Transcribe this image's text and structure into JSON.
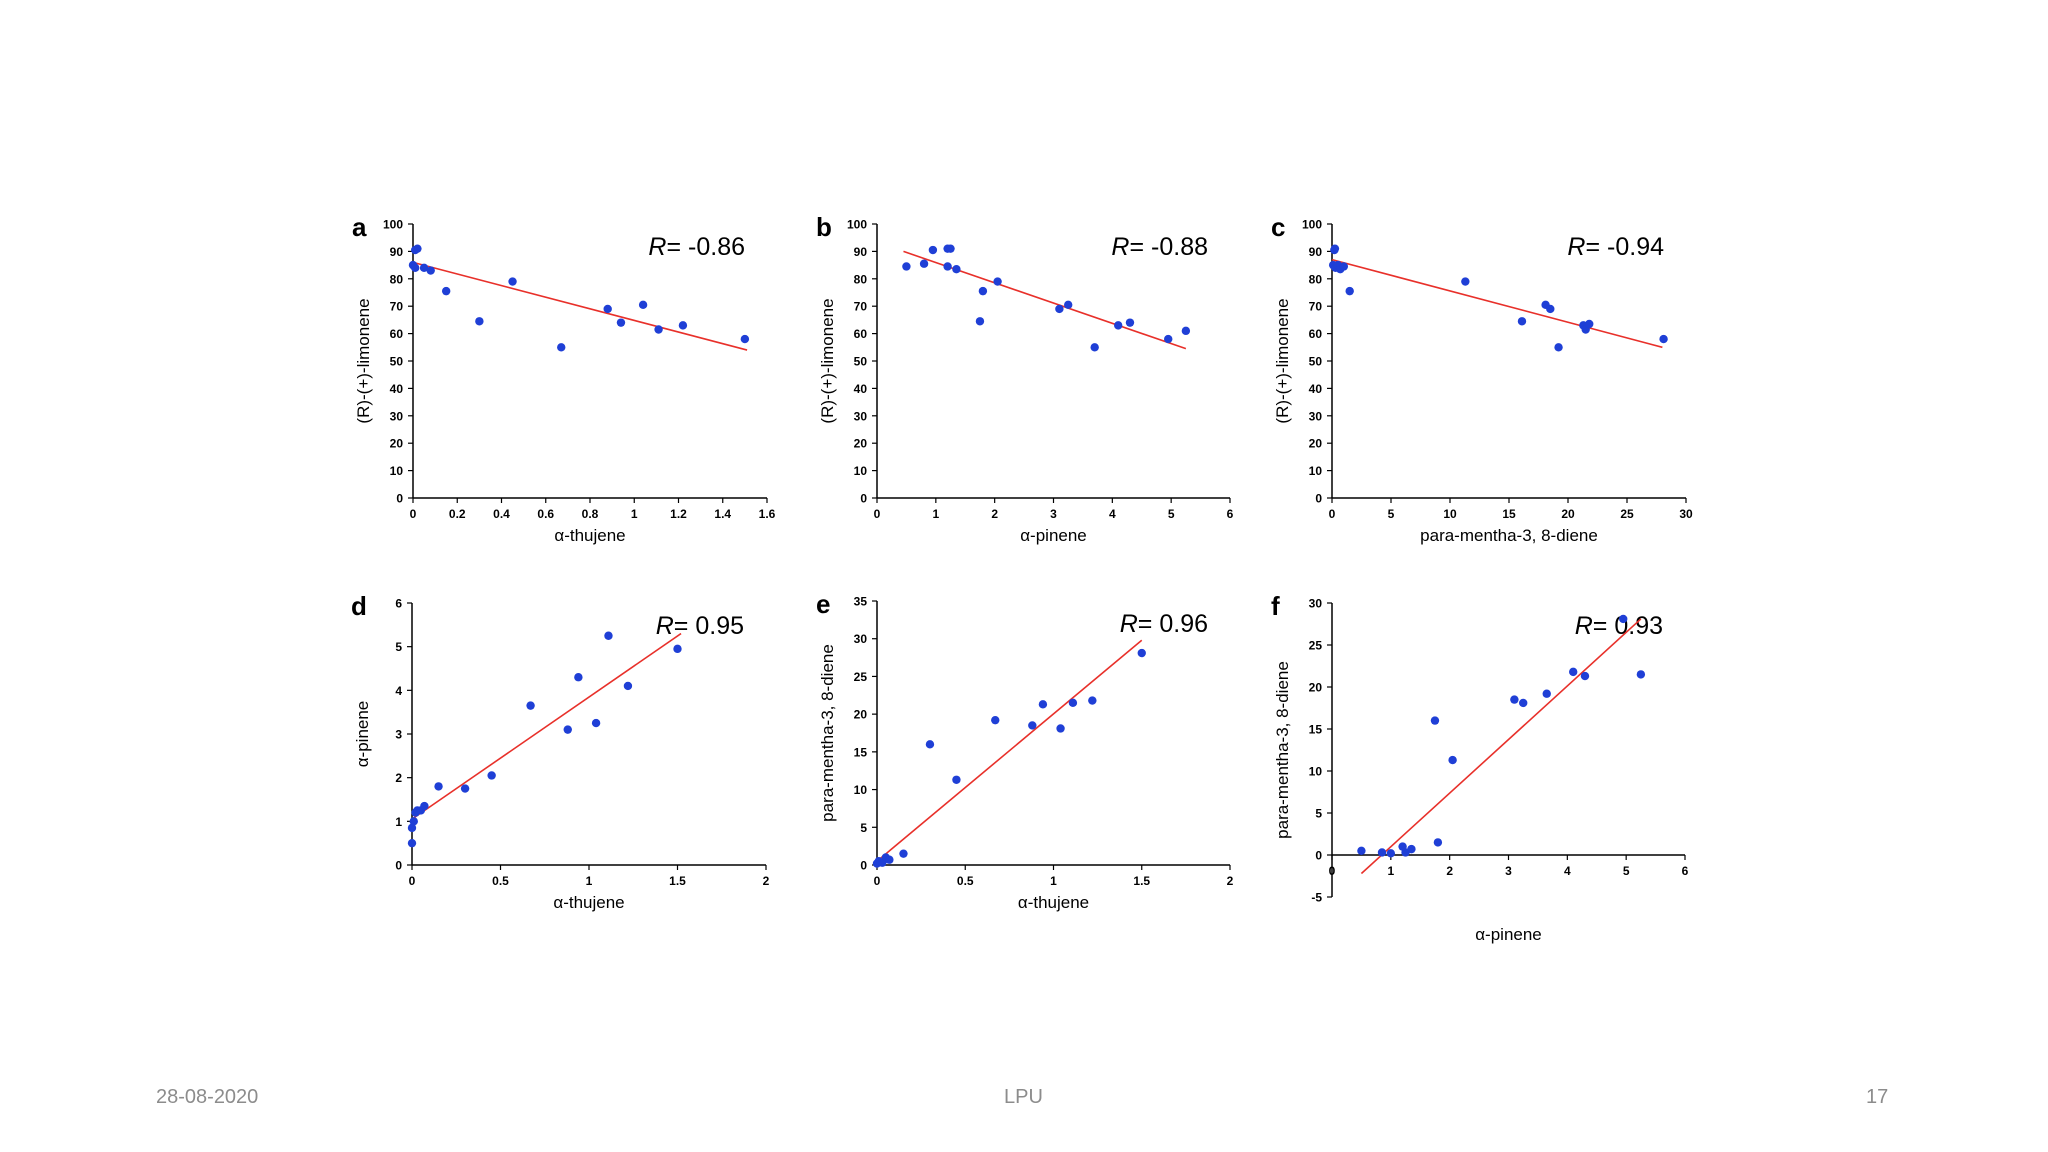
{
  "footer": {
    "date": "28-08-2020",
    "center": "LPU",
    "page": "17"
  },
  "colors": {
    "points": "#1f3fd6",
    "fit_line": "#e8302a",
    "axis": "#000000",
    "footer_text": "#8c8c8c"
  },
  "chart_data": [
    {
      "panel": "a",
      "type": "scatter",
      "r_label": "= -0.86",
      "xlabel": "α-thujene",
      "ylabel": "(R)-(+)-limonene",
      "xlim": [
        0,
        1.6
      ],
      "ylim": [
        0,
        100
      ],
      "xticks": [
        0,
        0.2,
        0.4,
        0.6,
        0.8,
        1,
        1.2,
        1.4,
        1.6
      ],
      "xtick_labels": [
        "0",
        "0.2",
        "0.4",
        "0.6",
        "0.8",
        "1",
        "1.2",
        "1.4",
        "1.6"
      ],
      "yticks": [
        0,
        10,
        20,
        30,
        40,
        50,
        60,
        70,
        80,
        90,
        100
      ],
      "ytick_labels": [
        "0",
        "10",
        "20",
        "30",
        "40",
        "50",
        "60",
        "70",
        "80",
        "90",
        "100"
      ],
      "points": [
        [
          0,
          85
        ],
        [
          0.01,
          90.5
        ],
        [
          0.02,
          91
        ],
        [
          0.01,
          84
        ],
        [
          0.05,
          84
        ],
        [
          0.08,
          83
        ],
        [
          0.15,
          75.5
        ],
        [
          0.3,
          64.5
        ],
        [
          0.45,
          79
        ],
        [
          0.67,
          55
        ],
        [
          0.88,
          69
        ],
        [
          0.94,
          64
        ],
        [
          1.04,
          70.5
        ],
        [
          1.11,
          61.5
        ],
        [
          1.22,
          63
        ],
        [
          1.5,
          58
        ]
      ],
      "fit": [
        [
          0,
          86
        ],
        [
          1.51,
          54
        ]
      ]
    },
    {
      "panel": "b",
      "type": "scatter",
      "r_label": "= -0.88",
      "xlabel": "α-pinene",
      "ylabel": "(R)-(+)-limonene",
      "xlim": [
        0,
        6
      ],
      "ylim": [
        0,
        100
      ],
      "xticks": [
        0,
        1,
        2,
        3,
        4,
        5,
        6
      ],
      "xtick_labels": [
        "0",
        "1",
        "2",
        "3",
        "4",
        "5",
        "6"
      ],
      "yticks": [
        0,
        10,
        20,
        30,
        40,
        50,
        60,
        70,
        80,
        90,
        100
      ],
      "ytick_labels": [
        "0",
        "10",
        "20",
        "30",
        "40",
        "50",
        "60",
        "70",
        "80",
        "90",
        "100"
      ],
      "points": [
        [
          0.5,
          84.5
        ],
        [
          0.8,
          85.5
        ],
        [
          0.95,
          90.5
        ],
        [
          1.2,
          91
        ],
        [
          1.25,
          91
        ],
        [
          1.2,
          84.5
        ],
        [
          1.35,
          83.5
        ],
        [
          1.75,
          64.5
        ],
        [
          1.8,
          75.5
        ],
        [
          2.05,
          79
        ],
        [
          3.1,
          69
        ],
        [
          3.25,
          70.5
        ],
        [
          3.7,
          55
        ],
        [
          4.1,
          63
        ],
        [
          4.3,
          64
        ],
        [
          4.95,
          58
        ],
        [
          5.25,
          61
        ]
      ],
      "fit": [
        [
          0.45,
          90
        ],
        [
          5.25,
          54.5
        ]
      ]
    },
    {
      "panel": "c",
      "type": "scatter",
      "r_label": "= -0.94",
      "xlabel": "para-mentha-3, 8-diene",
      "ylabel": "(R)-(+)-limonene",
      "xlim": [
        0,
        30
      ],
      "ylim": [
        0,
        100
      ],
      "xticks": [
        0,
        5,
        10,
        15,
        20,
        25,
        30
      ],
      "xtick_labels": [
        "0",
        "5",
        "10",
        "15",
        "20",
        "25",
        "30"
      ],
      "yticks": [
        0,
        10,
        20,
        30,
        40,
        50,
        60,
        70,
        80,
        90,
        100
      ],
      "ytick_labels": [
        "0",
        "10",
        "20",
        "30",
        "40",
        "50",
        "60",
        "70",
        "80",
        "90",
        "100"
      ],
      "points": [
        [
          0.1,
          85
        ],
        [
          0.2,
          90.5
        ],
        [
          0.25,
          91
        ],
        [
          0.3,
          84
        ],
        [
          0.5,
          85
        ],
        [
          0.7,
          83.5
        ],
        [
          1.0,
          84.5
        ],
        [
          1.5,
          75.5
        ],
        [
          11.3,
          79
        ],
        [
          16.1,
          64.5
        ],
        [
          18.1,
          70.5
        ],
        [
          18.5,
          69
        ],
        [
          19.2,
          55
        ],
        [
          21.3,
          63
        ],
        [
          21.5,
          61.5
        ],
        [
          21.8,
          63.5
        ],
        [
          28.1,
          58
        ]
      ],
      "fit": [
        [
          0,
          87
        ],
        [
          28,
          55
        ]
      ]
    },
    {
      "panel": "d",
      "type": "scatter",
      "r_label": "= 0.95",
      "xlabel": "α-thujene",
      "ylabel": "α-pinene",
      "xlim": [
        0,
        2
      ],
      "ylim": [
        0,
        6
      ],
      "xticks": [
        0,
        0.5,
        1,
        1.5,
        2
      ],
      "xtick_labels": [
        "0",
        "0.5",
        "1",
        "1.5",
        "2"
      ],
      "yticks": [
        0,
        1,
        2,
        3,
        4,
        5,
        6
      ],
      "ytick_labels": [
        "0",
        "1",
        "2",
        "3",
        "4",
        "5",
        "6"
      ],
      "points": [
        [
          0,
          0.5
        ],
        [
          0,
          0.85
        ],
        [
          0.01,
          1.0
        ],
        [
          0.02,
          1.2
        ],
        [
          0.03,
          1.25
        ],
        [
          0.05,
          1.25
        ],
        [
          0.07,
          1.35
        ],
        [
          0.15,
          1.8
        ],
        [
          0.3,
          1.75
        ],
        [
          0.45,
          2.05
        ],
        [
          0.67,
          3.65
        ],
        [
          0.88,
          3.1
        ],
        [
          0.94,
          4.3
        ],
        [
          1.04,
          3.25
        ],
        [
          1.11,
          5.25
        ],
        [
          1.22,
          4.1
        ],
        [
          1.5,
          4.95
        ]
      ],
      "fit": [
        [
          0,
          1.05
        ],
        [
          1.52,
          5.3
        ]
      ]
    },
    {
      "panel": "e",
      "type": "scatter",
      "r_label": "= 0.96",
      "xlabel": "α-thujene",
      "ylabel": "para-mentha-3, 8-diene",
      "xlim": [
        0,
        2
      ],
      "ylim": [
        0,
        35
      ],
      "xticks": [
        0,
        0.5,
        1,
        1.5,
        2
      ],
      "xtick_labels": [
        "0",
        "0.5",
        "1",
        "1.5",
        "2"
      ],
      "yticks": [
        0,
        5,
        10,
        15,
        20,
        25,
        30,
        35
      ],
      "ytick_labels": [
        "0",
        "5",
        "10",
        "15",
        "20",
        "25",
        "30",
        "35"
      ],
      "points": [
        [
          0,
          0.2
        ],
        [
          0.01,
          0.5
        ],
        [
          0.03,
          0.3
        ],
        [
          0.05,
          1.0
        ],
        [
          0.07,
          0.7
        ],
        [
          0.15,
          1.5
        ],
        [
          0.3,
          16
        ],
        [
          0.45,
          11.3
        ],
        [
          0.67,
          19.2
        ],
        [
          0.88,
          18.5
        ],
        [
          0.94,
          21.3
        ],
        [
          1.04,
          18.1
        ],
        [
          1.11,
          21.5
        ],
        [
          1.22,
          21.8
        ],
        [
          1.5,
          28.1
        ]
      ],
      "fit": [
        [
          0,
          0.5
        ],
        [
          1.5,
          29.8
        ]
      ]
    },
    {
      "panel": "f",
      "type": "scatter",
      "r_label": "= 0.93",
      "xlabel": "α-pinene",
      "ylabel": "para-mentha-3, 8-diene",
      "xlim": [
        0,
        6
      ],
      "ylim": [
        -5,
        30
      ],
      "xticks": [
        0,
        1,
        2,
        3,
        4,
        5,
        6
      ],
      "xtick_labels": [
        "0",
        "1",
        "2",
        "3",
        "4",
        "5",
        "6"
      ],
      "yticks": [
        -5,
        0,
        5,
        10,
        15,
        20,
        25,
        30
      ],
      "ytick_labels": [
        "-5",
        "0",
        "5",
        "10",
        "15",
        "20",
        "25",
        "30"
      ],
      "points": [
        [
          0.5,
          0.5
        ],
        [
          0.85,
          0.3
        ],
        [
          1.0,
          0.2
        ],
        [
          1.2,
          1.0
        ],
        [
          1.25,
          0.3
        ],
        [
          1.35,
          0.7
        ],
        [
          1.75,
          16
        ],
        [
          1.8,
          1.5
        ],
        [
          2.05,
          11.3
        ],
        [
          3.1,
          18.5
        ],
        [
          3.25,
          18.1
        ],
        [
          3.65,
          19.2
        ],
        [
          4.1,
          21.8
        ],
        [
          4.3,
          21.3
        ],
        [
          4.95,
          28.1
        ],
        [
          5.25,
          21.5
        ]
      ],
      "fit": [
        [
          0.5,
          -2.2
        ],
        [
          5.25,
          28.1
        ]
      ]
    }
  ]
}
